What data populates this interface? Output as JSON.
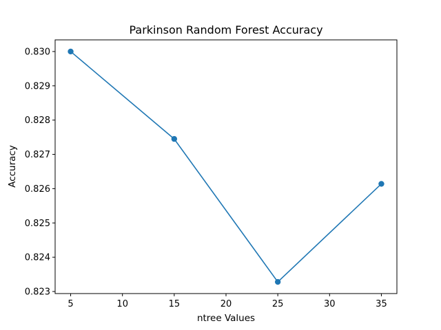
{
  "chart_data": {
    "type": "line",
    "title": "Parkinson Random Forest Accuracy",
    "xlabel": "ntree Values",
    "ylabel": "Accuracy",
    "x": [
      5,
      15,
      25,
      35
    ],
    "series": [
      {
        "values": [
          0.83,
          0.82745,
          0.82328,
          0.82614
        ],
        "color": "#1f77b4",
        "marker": "circle"
      }
    ],
    "xlim": [
      3.5,
      36.5
    ],
    "ylim": [
      0.82294,
      0.83034
    ],
    "xticks": [
      5,
      10,
      15,
      20,
      25,
      30,
      35
    ],
    "xtick_labels": [
      "5",
      "10",
      "15",
      "20",
      "25",
      "30",
      "35"
    ],
    "yticks": [
      0.823,
      0.824,
      0.825,
      0.826,
      0.827,
      0.828,
      0.829,
      0.83
    ],
    "ytick_labels": [
      "0.823",
      "0.824",
      "0.825",
      "0.826",
      "0.827",
      "0.828",
      "0.829",
      "0.830"
    ],
    "grid": false,
    "legend": false
  }
}
